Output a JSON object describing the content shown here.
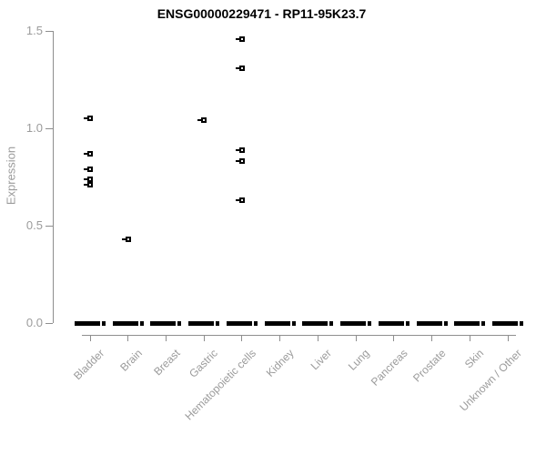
{
  "chart_data": {
    "type": "scatter",
    "title": "ENSG00000229471 - RP11-95K23.7",
    "xlabel": "",
    "ylabel": "Expression",
    "ylim": [
      0,
      1.5
    ],
    "yticks": [
      0.0,
      0.5,
      1.0,
      1.5
    ],
    "ytick_labels": [
      "0.0",
      "0.5",
      "1.0",
      "1.5"
    ],
    "grid": "off",
    "legend": "none",
    "marker": "small open black square with left whisker dash",
    "categories": [
      "Bladder",
      "Brain",
      "Breast",
      "Gastric",
      "Hematopoietic cells",
      "Kidney",
      "Liver",
      "Lung",
      "Pancreas",
      "Prostate",
      "Skin",
      "Unknown / Other"
    ],
    "series": [
      {
        "category": "Bladder",
        "nonzero_points": [
          1.05,
          0.87,
          0.79,
          0.74,
          0.71
        ],
        "zero_cluster_bar": true
      },
      {
        "category": "Brain",
        "nonzero_points": [
          0.43
        ],
        "zero_cluster_bar": true
      },
      {
        "category": "Breast",
        "nonzero_points": [],
        "zero_cluster_bar": true
      },
      {
        "category": "Gastric",
        "nonzero_points": [
          1.04
        ],
        "zero_cluster_bar": true
      },
      {
        "category": "Hematopoietic cells",
        "nonzero_points": [
          1.46,
          1.31,
          0.89,
          0.83,
          0.63
        ],
        "zero_cluster_bar": true
      },
      {
        "category": "Kidney",
        "nonzero_points": [],
        "zero_cluster_bar": true
      },
      {
        "category": "Liver",
        "nonzero_points": [],
        "zero_cluster_bar": true
      },
      {
        "category": "Lung",
        "nonzero_points": [],
        "zero_cluster_bar": true
      },
      {
        "category": "Pancreas",
        "nonzero_points": [],
        "zero_cluster_bar": true
      },
      {
        "category": "Prostate",
        "nonzero_points": [],
        "zero_cluster_bar": true
      },
      {
        "category": "Skin",
        "nonzero_points": [],
        "zero_cluster_bar": true
      },
      {
        "category": "Unknown / Other",
        "nonzero_points": [],
        "zero_cluster_bar": true
      }
    ],
    "zero_cluster_value": 0.0,
    "colors": {
      "title_text": "#000000",
      "axis_line": "#8e8e8e",
      "tick_text": "#9b9b9b",
      "points": "#000000",
      "background": "#ffffff"
    }
  }
}
